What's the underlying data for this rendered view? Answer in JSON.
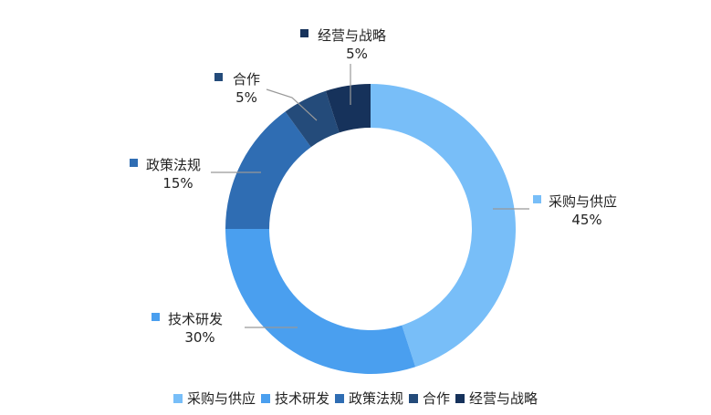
{
  "chart_data": {
    "type": "pie",
    "variant": "donut",
    "title": "",
    "legend_position": "bottom",
    "slices": [
      {
        "name": "采购与供应",
        "value": 45,
        "label": "45%",
        "color": "#78bef8"
      },
      {
        "name": "技术研发",
        "value": 30,
        "label": "30%",
        "color": "#4a9fef"
      },
      {
        "name": "政策法规",
        "value": 15,
        "label": "15%",
        "color": "#2f6db3"
      },
      {
        "name": "合作",
        "value": 5,
        "label": "5%",
        "color": "#244b7a"
      },
      {
        "name": "经营与战略",
        "value": 5,
        "label": "5%",
        "color": "#16325b"
      }
    ]
  }
}
